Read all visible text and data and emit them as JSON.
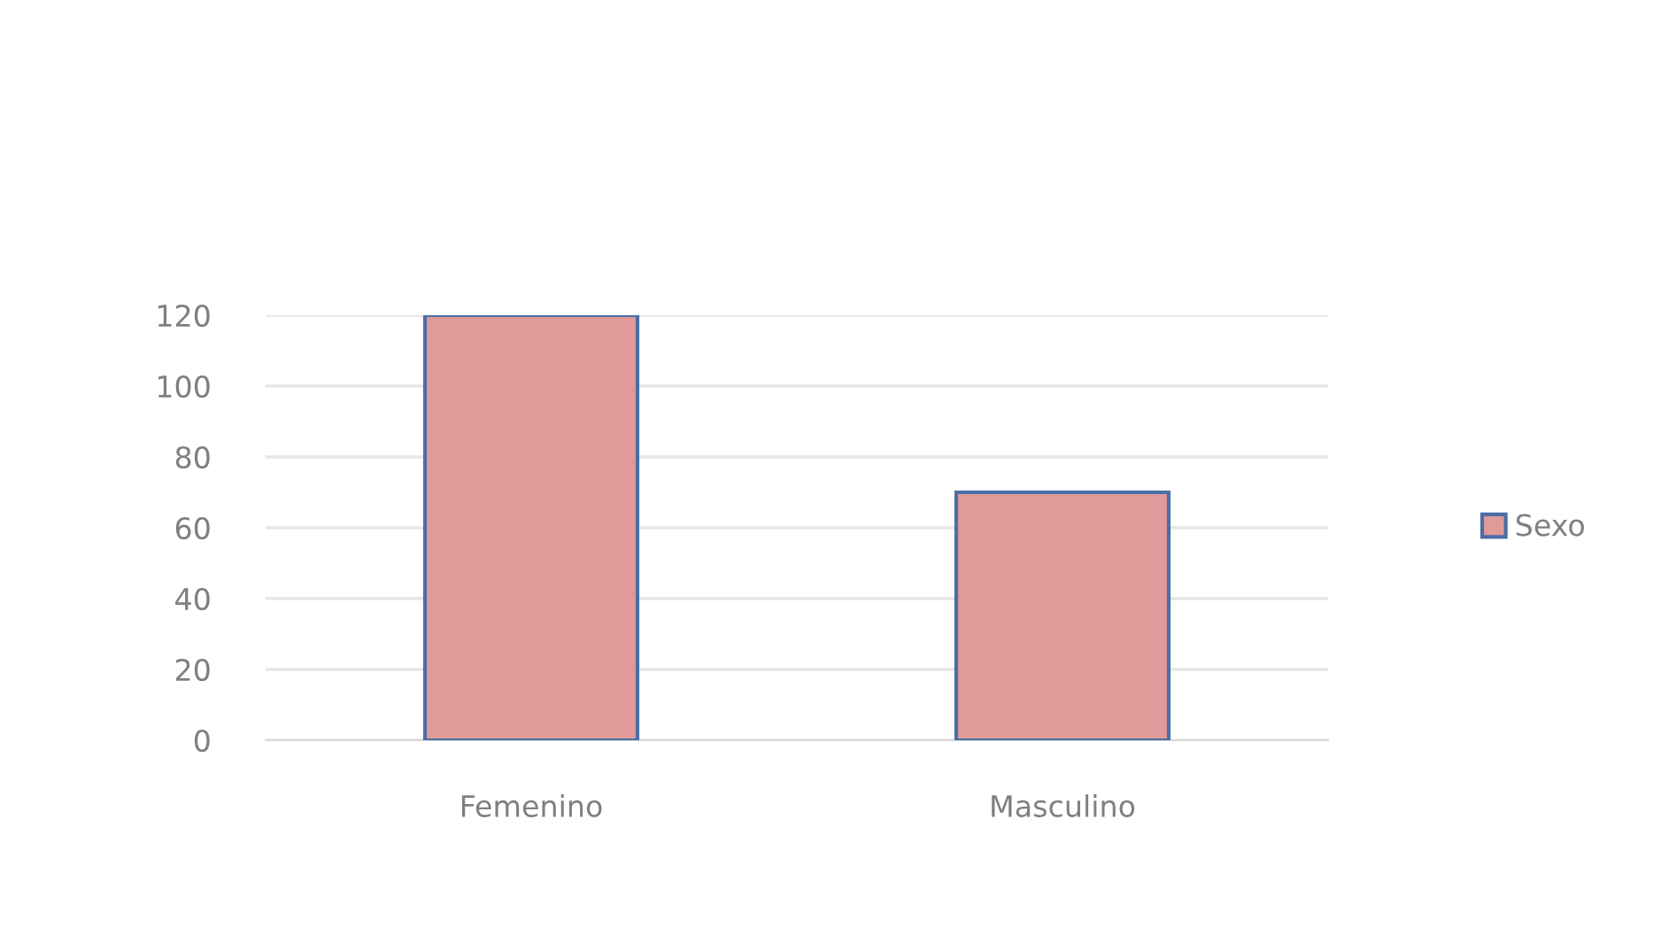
{
  "chart_data": {
    "type": "bar",
    "categories": [
      "Femenino",
      "Masculino"
    ],
    "series": [
      {
        "name": "Sexo",
        "color": "#e09a9a",
        "values": [
          120,
          70
        ]
      }
    ],
    "ylim": [
      0,
      120
    ],
    "yticks": [
      0,
      20,
      40,
      60,
      80,
      100,
      120
    ],
    "grid": "y",
    "legend": "right"
  }
}
